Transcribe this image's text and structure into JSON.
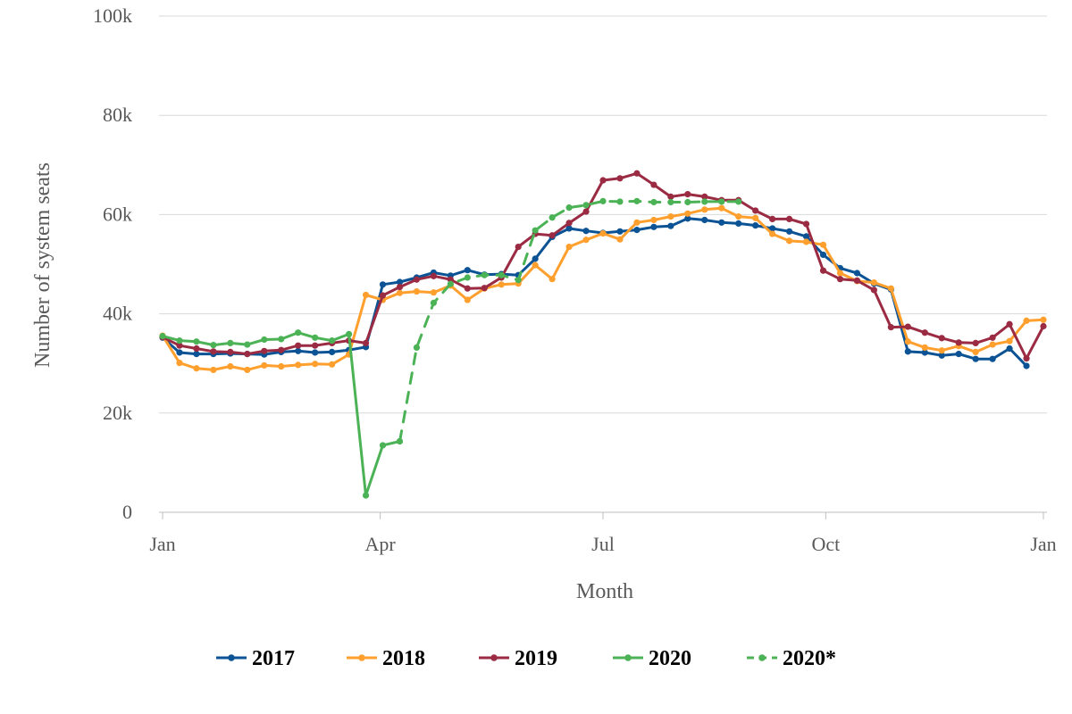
{
  "chart_data": {
    "type": "line",
    "xlabel": "Month",
    "ylabel": "Number of system seats",
    "x_ticks": [
      "Jan",
      "Apr",
      "Jul",
      "Oct",
      "Jan"
    ],
    "y_ticks": [
      "0",
      "20k",
      "40k",
      "60k",
      "80k",
      "100k"
    ],
    "ylim": [
      0,
      100000
    ],
    "x_unit": "week of year",
    "xlim": [
      1,
      53
    ],
    "grid": "horizontal",
    "legend_position": "bottom",
    "series": [
      {
        "name": "2017",
        "color": "#0b5394",
        "dashed": false,
        "x": [
          1,
          2,
          3,
          4,
          5,
          6,
          7,
          8,
          9,
          10,
          11,
          12,
          13,
          14,
          15,
          16,
          17,
          18,
          19,
          20,
          21,
          22,
          23,
          24,
          25,
          26,
          27,
          28,
          29,
          30,
          31,
          32,
          33,
          34,
          35,
          36,
          37,
          38,
          39,
          40,
          41,
          42,
          43,
          44,
          45,
          46,
          47,
          48,
          49,
          50,
          51,
          52
        ],
        "values": [
          35200,
          32200,
          31900,
          31900,
          32000,
          31900,
          31800,
          32300,
          32500,
          32200,
          32300,
          32700,
          33300,
          45900,
          46400,
          47300,
          48300,
          47700,
          48800,
          47900,
          48000,
          47800,
          51100,
          55500,
          57200,
          56700,
          56300,
          56600,
          56900,
          57500,
          57700,
          59200,
          58900,
          58400,
          58200,
          57800,
          57200,
          56600,
          55600,
          51900,
          49200,
          48200,
          46100,
          44900,
          32400,
          32200,
          31600,
          31900,
          30900,
          30900,
          33000,
          29500
        ]
      },
      {
        "name": "2018",
        "color": "#ff9f2e",
        "dashed": false,
        "x": [
          1,
          2,
          3,
          4,
          5,
          6,
          7,
          8,
          9,
          10,
          11,
          12,
          13,
          14,
          15,
          16,
          17,
          18,
          19,
          20,
          21,
          22,
          23,
          24,
          25,
          26,
          27,
          28,
          29,
          30,
          31,
          32,
          33,
          34,
          35,
          36,
          37,
          38,
          39,
          40,
          41,
          42,
          43,
          44,
          45,
          46,
          47,
          48,
          49,
          50,
          51,
          52,
          53
        ],
        "values": [
          35600,
          30100,
          29000,
          28700,
          29400,
          28700,
          29600,
          29400,
          29700,
          29900,
          29800,
          31800,
          43800,
          42800,
          44200,
          44500,
          44300,
          45700,
          42800,
          45100,
          45900,
          46100,
          49800,
          47000,
          53500,
          54900,
          56200,
          55000,
          58400,
          58900,
          59600,
          60200,
          61000,
          61300,
          59600,
          59300,
          56100,
          54700,
          54500,
          53900,
          48200,
          46600,
          46300,
          45100,
          34400,
          33200,
          32600,
          33500,
          32300,
          33800,
          34500,
          38600,
          38800
        ]
      },
      {
        "name": "2019",
        "color": "#9b2b43",
        "dashed": false,
        "x": [
          1,
          2,
          3,
          4,
          5,
          6,
          7,
          8,
          9,
          10,
          11,
          12,
          13,
          14,
          15,
          16,
          17,
          18,
          19,
          20,
          21,
          22,
          23,
          24,
          25,
          26,
          27,
          28,
          29,
          30,
          31,
          32,
          33,
          34,
          35,
          36,
          37,
          38,
          39,
          40,
          41,
          42,
          43,
          44,
          45,
          46,
          47,
          48,
          49,
          50,
          51,
          52,
          53
        ],
        "values": [
          35300,
          33600,
          33000,
          32400,
          32300,
          31900,
          32500,
          32700,
          33600,
          33600,
          34100,
          34600,
          34100,
          43700,
          45400,
          46900,
          47600,
          46900,
          45100,
          45200,
          47300,
          53500,
          56100,
          55800,
          58300,
          60600,
          66900,
          67300,
          68300,
          66000,
          63600,
          64100,
          63600,
          62900,
          62900,
          60800,
          59100,
          59100,
          58100,
          48700,
          47000,
          46700,
          44800,
          37300,
          37400,
          36200,
          35100,
          34200,
          34100,
          35200,
          37900,
          31000,
          37500
        ]
      },
      {
        "name": "2020",
        "color": "#4cb256",
        "dashed": false,
        "x": [
          1,
          2,
          3,
          4,
          5,
          6,
          7,
          8,
          9,
          10,
          11,
          12,
          13,
          14,
          15
        ],
        "values": [
          35500,
          34600,
          34400,
          33700,
          34100,
          33800,
          34800,
          34900,
          36200,
          35200,
          34600,
          35900,
          3400,
          13500,
          14300
        ]
      },
      {
        "name": "2020*",
        "color": "#4cb256",
        "dashed": true,
        "x": [
          15,
          16,
          17,
          18,
          19,
          20,
          21,
          22,
          23,
          24,
          25,
          26,
          27,
          28,
          29,
          30,
          31,
          32,
          33,
          34,
          35
        ],
        "values": [
          14300,
          33200,
          42200,
          46000,
          47300,
          47800,
          47800,
          46800,
          56800,
          59400,
          61400,
          61900,
          62700,
          62600,
          62700,
          62500,
          62500,
          62500,
          62600,
          62600,
          62600
        ]
      }
    ]
  }
}
